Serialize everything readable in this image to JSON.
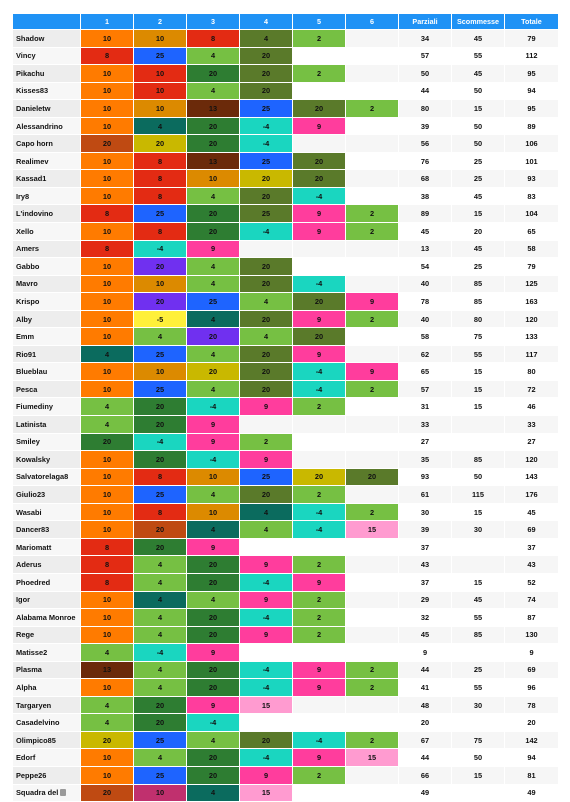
{
  "header": {
    "corner": "",
    "cols": [
      "1",
      "2",
      "3",
      "4",
      "5",
      "6"
    ],
    "parziali": "Parziali",
    "scommesse": "Scommesse",
    "totale": "Totale"
  },
  "palette": {
    "o": "#ff7b00",
    "r": "#e32b13",
    "g": "#76c043",
    "G": "#2e7d32",
    "t": "#1ad6c0",
    "T": "#0b6b5e",
    "m": "#ff3d9d",
    "p": "#ff9bd0",
    "b": "#1e64ff",
    "v": "#7030f0",
    "y": "#c9b800",
    "Y": "#fff03a",
    "k": "#dc8a00",
    "d": "#6b2a0a",
    "R": "#c0306e",
    "h": "#bf4a12",
    "O": "#5a7a2a"
  },
  "rows": [
    {
      "name": "Shadow",
      "cells": [
        [
          "10",
          "o"
        ],
        [
          "10",
          "k"
        ],
        [
          "8",
          "r"
        ],
        [
          "4",
          "O"
        ],
        [
          "2",
          "g"
        ],
        [
          "",
          ""
        ]
      ],
      "parziali": "34",
      "scommesse": "45",
      "totale": "79"
    },
    {
      "name": "Vincy",
      "cells": [
        [
          "8",
          "r"
        ],
        [
          "25",
          "b"
        ],
        [
          "4",
          "g"
        ],
        [
          "20",
          "O"
        ],
        [
          "",
          ""
        ],
        [
          "",
          ""
        ]
      ],
      "parziali": "57",
      "scommesse": "55",
      "totale": "112"
    },
    {
      "name": "Pikachu",
      "cells": [
        [
          "10",
          "o"
        ],
        [
          "10",
          "r"
        ],
        [
          "20",
          "G"
        ],
        [
          "20",
          "O"
        ],
        [
          "2",
          "g"
        ],
        [
          "",
          ""
        ]
      ],
      "parziali": "50",
      "scommesse": "45",
      "totale": "95"
    },
    {
      "name": "Kisses83",
      "cells": [
        [
          "10",
          "o"
        ],
        [
          "10",
          "r"
        ],
        [
          "4",
          "g"
        ],
        [
          "20",
          "O"
        ],
        [
          "",
          ""
        ],
        [
          "",
          ""
        ]
      ],
      "parziali": "44",
      "scommesse": "50",
      "totale": "94"
    },
    {
      "name": "Danieletw",
      "cells": [
        [
          "10",
          "o"
        ],
        [
          "10",
          "k"
        ],
        [
          "13",
          "d"
        ],
        [
          "25",
          "b"
        ],
        [
          "20",
          "O"
        ],
        [
          "2",
          "g"
        ]
      ],
      "parziali": "80",
      "scommesse": "15",
      "totale": "95"
    },
    {
      "name": "Alessandrino",
      "cells": [
        [
          "10",
          "o"
        ],
        [
          "4",
          "T"
        ],
        [
          "20",
          "G"
        ],
        [
          "-4",
          "t"
        ],
        [
          "9",
          "m"
        ],
        [
          "",
          ""
        ]
      ],
      "parziali": "39",
      "scommesse": "50",
      "totale": "89"
    },
    {
      "name": "Capo horn",
      "cells": [
        [
          "20",
          "h"
        ],
        [
          "20",
          "y"
        ],
        [
          "20",
          "G"
        ],
        [
          "-4",
          "t"
        ],
        [
          "",
          ""
        ],
        [
          "",
          ""
        ]
      ],
      "parziali": "56",
      "scommesse": "50",
      "totale": "106"
    },
    {
      "name": "Realimev",
      "cells": [
        [
          "10",
          "o"
        ],
        [
          "8",
          "r"
        ],
        [
          "13",
          "d"
        ],
        [
          "25",
          "b"
        ],
        [
          "20",
          "O"
        ],
        [
          "",
          ""
        ]
      ],
      "parziali": "76",
      "scommesse": "25",
      "totale": "101"
    },
    {
      "name": "Kassad1",
      "cells": [
        [
          "10",
          "o"
        ],
        [
          "8",
          "r"
        ],
        [
          "10",
          "k"
        ],
        [
          "20",
          "y"
        ],
        [
          "20",
          "O"
        ],
        [
          "",
          ""
        ]
      ],
      "parziali": "68",
      "scommesse": "25",
      "totale": "93"
    },
    {
      "name": "Iry8",
      "cells": [
        [
          "10",
          "o"
        ],
        [
          "8",
          "r"
        ],
        [
          "4",
          "g"
        ],
        [
          "20",
          "O"
        ],
        [
          "-4",
          "t"
        ],
        [
          "",
          ""
        ]
      ],
      "parziali": "38",
      "scommesse": "45",
      "totale": "83"
    },
    {
      "name": "L'indovino",
      "cells": [
        [
          "8",
          "r"
        ],
        [
          "25",
          "b"
        ],
        [
          "20",
          "G"
        ],
        [
          "25",
          "O"
        ],
        [
          "9",
          "m"
        ],
        [
          "2",
          "g"
        ]
      ],
      "parziali": "89",
      "scommesse": "15",
      "totale": "104"
    },
    {
      "name": "Xello",
      "cells": [
        [
          "10",
          "o"
        ],
        [
          "8",
          "r"
        ],
        [
          "20",
          "G"
        ],
        [
          "-4",
          "t"
        ],
        [
          "9",
          "m"
        ],
        [
          "2",
          "g"
        ]
      ],
      "parziali": "45",
      "scommesse": "20",
      "totale": "65"
    },
    {
      "name": "Amers",
      "cells": [
        [
          "8",
          "r"
        ],
        [
          "-4",
          "t"
        ],
        [
          "9",
          "m"
        ],
        [
          "",
          ""
        ],
        [
          "",
          ""
        ],
        [
          "",
          ""
        ]
      ],
      "parziali": "13",
      "scommesse": "45",
      "totale": "58"
    },
    {
      "name": "Gabbo",
      "cells": [
        [
          "10",
          "o"
        ],
        [
          "20",
          "v"
        ],
        [
          "4",
          "g"
        ],
        [
          "20",
          "O"
        ],
        [
          "",
          ""
        ],
        [
          "",
          ""
        ]
      ],
      "parziali": "54",
      "scommesse": "25",
      "totale": "79"
    },
    {
      "name": "Mavro",
      "cells": [
        [
          "10",
          "o"
        ],
        [
          "10",
          "k"
        ],
        [
          "4",
          "g"
        ],
        [
          "20",
          "O"
        ],
        [
          "-4",
          "t"
        ],
        [
          "",
          ""
        ]
      ],
      "parziali": "40",
      "scommesse": "85",
      "totale": "125"
    },
    {
      "name": "Krispo",
      "cells": [
        [
          "10",
          "o"
        ],
        [
          "20",
          "v"
        ],
        [
          "25",
          "b"
        ],
        [
          "4",
          "g"
        ],
        [
          "20",
          "O"
        ],
        [
          "9",
          "m"
        ]
      ],
      "parziali": "78",
      "scommesse": "85",
      "totale": "163"
    },
    {
      "name": "Alby",
      "cells": [
        [
          "10",
          "o"
        ],
        [
          "-5",
          "Y"
        ],
        [
          "4",
          "T"
        ],
        [
          "20",
          "O"
        ],
        [
          "9",
          "m"
        ],
        [
          "2",
          "g"
        ]
      ],
      "parziali": "40",
      "scommesse": "80",
      "totale": "120"
    },
    {
      "name": "Emm",
      "cells": [
        [
          "10",
          "o"
        ],
        [
          "4",
          "g"
        ],
        [
          "20",
          "v"
        ],
        [
          "4",
          "g"
        ],
        [
          "20",
          "O"
        ],
        [
          "",
          ""
        ]
      ],
      "parziali": "58",
      "scommesse": "75",
      "totale": "133"
    },
    {
      "name": "Rio91",
      "cells": [
        [
          "4",
          "T"
        ],
        [
          "25",
          "b"
        ],
        [
          "4",
          "g"
        ],
        [
          "20",
          "O"
        ],
        [
          "9",
          "m"
        ],
        [
          "",
          ""
        ]
      ],
      "parziali": "62",
      "scommesse": "55",
      "totale": "117"
    },
    {
      "name": "Blueblau",
      "cells": [
        [
          "10",
          "o"
        ],
        [
          "10",
          "k"
        ],
        [
          "20",
          "y"
        ],
        [
          "20",
          "O"
        ],
        [
          "-4",
          "t"
        ],
        [
          "9",
          "m"
        ]
      ],
      "parziali": "65",
      "scommesse": "15",
      "totale": "80"
    },
    {
      "name": "Pesca",
      "cells": [
        [
          "10",
          "o"
        ],
        [
          "25",
          "b"
        ],
        [
          "4",
          "g"
        ],
        [
          "20",
          "O"
        ],
        [
          "-4",
          "t"
        ],
        [
          "2",
          "g"
        ]
      ],
      "parziali": "57",
      "scommesse": "15",
      "totale": "72"
    },
    {
      "name": "Fiumediny",
      "cells": [
        [
          "4",
          "g"
        ],
        [
          "20",
          "G"
        ],
        [
          "-4",
          "t"
        ],
        [
          "9",
          "m"
        ],
        [
          "2",
          "g"
        ],
        [
          "",
          ""
        ]
      ],
      "parziali": "31",
      "scommesse": "15",
      "totale": "46"
    },
    {
      "name": "Latinista",
      "cells": [
        [
          "4",
          "g"
        ],
        [
          "20",
          "G"
        ],
        [
          "9",
          "m"
        ],
        [
          "",
          ""
        ],
        [
          "",
          ""
        ],
        [
          "",
          ""
        ]
      ],
      "parziali": "33",
      "scommesse": "",
      "totale": "33"
    },
    {
      "name": "Smiley",
      "cells": [
        [
          "20",
          "G"
        ],
        [
          "-4",
          "t"
        ],
        [
          "9",
          "m"
        ],
        [
          "2",
          "g"
        ],
        [
          "",
          ""
        ],
        [
          "",
          ""
        ]
      ],
      "parziali": "27",
      "scommesse": "",
      "totale": "27"
    },
    {
      "name": "Kowalsky",
      "cells": [
        [
          "10",
          "o"
        ],
        [
          "20",
          "G"
        ],
        [
          "-4",
          "t"
        ],
        [
          "9",
          "m"
        ],
        [
          "",
          ""
        ],
        [
          "",
          ""
        ]
      ],
      "parziali": "35",
      "scommesse": "85",
      "totale": "120"
    },
    {
      "name": "Salvatorelaga8",
      "cells": [
        [
          "10",
          "o"
        ],
        [
          "8",
          "r"
        ],
        [
          "10",
          "k"
        ],
        [
          "25",
          "b"
        ],
        [
          "20",
          "y"
        ],
        [
          "20",
          "O"
        ]
      ],
      "parziali": "93",
      "scommesse": "50",
      "totale": "143"
    },
    {
      "name": "Giulio23",
      "cells": [
        [
          "10",
          "o"
        ],
        [
          "25",
          "b"
        ],
        [
          "4",
          "g"
        ],
        [
          "20",
          "O"
        ],
        [
          "2",
          "g"
        ],
        [
          "",
          ""
        ]
      ],
      "parziali": "61",
      "scommesse": "115",
      "totale": "176"
    },
    {
      "name": "Wasabi",
      "cells": [
        [
          "10",
          "o"
        ],
        [
          "8",
          "r"
        ],
        [
          "10",
          "k"
        ],
        [
          "4",
          "T"
        ],
        [
          "-4",
          "t"
        ],
        [
          "2",
          "g"
        ]
      ],
      "parziali": "30",
      "scommesse": "15",
      "totale": "45"
    },
    {
      "name": "Dancer83",
      "cells": [
        [
          "10",
          "o"
        ],
        [
          "20",
          "h"
        ],
        [
          "4",
          "T"
        ],
        [
          "4",
          "g"
        ],
        [
          "-4",
          "t"
        ],
        [
          "15",
          "p"
        ]
      ],
      "parziali": "39",
      "scommesse": "30",
      "totale": "69"
    },
    {
      "name": "Mariomatt",
      "cells": [
        [
          "8",
          "r"
        ],
        [
          "20",
          "G"
        ],
        [
          "9",
          "m"
        ],
        [
          "",
          ""
        ],
        [
          "",
          ""
        ],
        [
          "",
          ""
        ]
      ],
      "parziali": "37",
      "scommesse": "",
      "totale": "37"
    },
    {
      "name": "Aderus",
      "cells": [
        [
          "8",
          "r"
        ],
        [
          "4",
          "g"
        ],
        [
          "20",
          "G"
        ],
        [
          "9",
          "m"
        ],
        [
          "2",
          "g"
        ],
        [
          "",
          ""
        ]
      ],
      "parziali": "43",
      "scommesse": "",
      "totale": "43"
    },
    {
      "name": "Phoedred",
      "cells": [
        [
          "8",
          "r"
        ],
        [
          "4",
          "g"
        ],
        [
          "20",
          "G"
        ],
        [
          "-4",
          "t"
        ],
        [
          "9",
          "m"
        ],
        [
          "",
          ""
        ]
      ],
      "parziali": "37",
      "scommesse": "15",
      "totale": "52"
    },
    {
      "name": "Igor",
      "cells": [
        [
          "10",
          "o"
        ],
        [
          "4",
          "T"
        ],
        [
          "4",
          "g"
        ],
        [
          "9",
          "m"
        ],
        [
          "2",
          "g"
        ],
        [
          "",
          ""
        ]
      ],
      "parziali": "29",
      "scommesse": "45",
      "totale": "74"
    },
    {
      "name": "Alabama Monroe",
      "cells": [
        [
          "10",
          "o"
        ],
        [
          "4",
          "g"
        ],
        [
          "20",
          "G"
        ],
        [
          "-4",
          "t"
        ],
        [
          "2",
          "g"
        ],
        [
          "",
          ""
        ]
      ],
      "parziali": "32",
      "scommesse": "55",
      "totale": "87"
    },
    {
      "name": "Rege",
      "cells": [
        [
          "10",
          "o"
        ],
        [
          "4",
          "g"
        ],
        [
          "20",
          "G"
        ],
        [
          "9",
          "m"
        ],
        [
          "2",
          "g"
        ],
        [
          "",
          ""
        ]
      ],
      "parziali": "45",
      "scommesse": "85",
      "totale": "130"
    },
    {
      "name": "Matisse2",
      "cells": [
        [
          "4",
          "g"
        ],
        [
          "-4",
          "t"
        ],
        [
          "9",
          "m"
        ],
        [
          "",
          ""
        ],
        [
          "",
          ""
        ],
        [
          "",
          ""
        ]
      ],
      "parziali": "9",
      "scommesse": "",
      "totale": "9"
    },
    {
      "name": "Plasma",
      "cells": [
        [
          "13",
          "d"
        ],
        [
          "4",
          "g"
        ],
        [
          "20",
          "G"
        ],
        [
          "-4",
          "t"
        ],
        [
          "9",
          "m"
        ],
        [
          "2",
          "g"
        ]
      ],
      "parziali": "44",
      "scommesse": "25",
      "totale": "69"
    },
    {
      "name": "Alpha",
      "cells": [
        [
          "10",
          "o"
        ],
        [
          "4",
          "g"
        ],
        [
          "20",
          "G"
        ],
        [
          "-4",
          "t"
        ],
        [
          "9",
          "m"
        ],
        [
          "2",
          "g"
        ]
      ],
      "parziali": "41",
      "scommesse": "55",
      "totale": "96"
    },
    {
      "name": "Targaryen",
      "cells": [
        [
          "4",
          "g"
        ],
        [
          "20",
          "G"
        ],
        [
          "9",
          "m"
        ],
        [
          "15",
          "p"
        ],
        [
          "",
          ""
        ],
        [
          "",
          ""
        ]
      ],
      "parziali": "48",
      "scommesse": "30",
      "totale": "78"
    },
    {
      "name": "Casadelvino",
      "cells": [
        [
          "4",
          "g"
        ],
        [
          "20",
          "G"
        ],
        [
          "-4",
          "t"
        ],
        [
          "",
          ""
        ],
        [
          "",
          ""
        ],
        [
          "",
          ""
        ]
      ],
      "parziali": "20",
      "scommesse": "",
      "totale": "20"
    },
    {
      "name": "Olimpico85",
      "cells": [
        [
          "20",
          "y"
        ],
        [
          "25",
          "b"
        ],
        [
          "4",
          "g"
        ],
        [
          "20",
          "O"
        ],
        [
          "-4",
          "t"
        ],
        [
          "2",
          "g"
        ]
      ],
      "parziali": "67",
      "scommesse": "75",
      "totale": "142"
    },
    {
      "name": "Edorf",
      "cells": [
        [
          "10",
          "o"
        ],
        [
          "4",
          "g"
        ],
        [
          "20",
          "G"
        ],
        [
          "-4",
          "t"
        ],
        [
          "9",
          "m"
        ],
        [
          "15",
          "p"
        ]
      ],
      "parziali": "44",
      "scommesse": "50",
      "totale": "94"
    },
    {
      "name": "Peppe26",
      "cells": [
        [
          "10",
          "o"
        ],
        [
          "25",
          "b"
        ],
        [
          "20",
          "G"
        ],
        [
          "9",
          "m"
        ],
        [
          "2",
          "g"
        ],
        [
          "",
          ""
        ]
      ],
      "parziali": "66",
      "scommesse": "15",
      "totale": "81"
    },
    {
      "name": "Squadra del",
      "icon": "trash-icon",
      "cells": [
        [
          "20",
          "h"
        ],
        [
          "10",
          "R"
        ],
        [
          "4",
          "T"
        ],
        [
          "15",
          "p"
        ],
        [
          "",
          ""
        ],
        [
          "",
          ""
        ]
      ],
      "parziali": "49",
      "scommesse": "",
      "totale": "49"
    }
  ]
}
